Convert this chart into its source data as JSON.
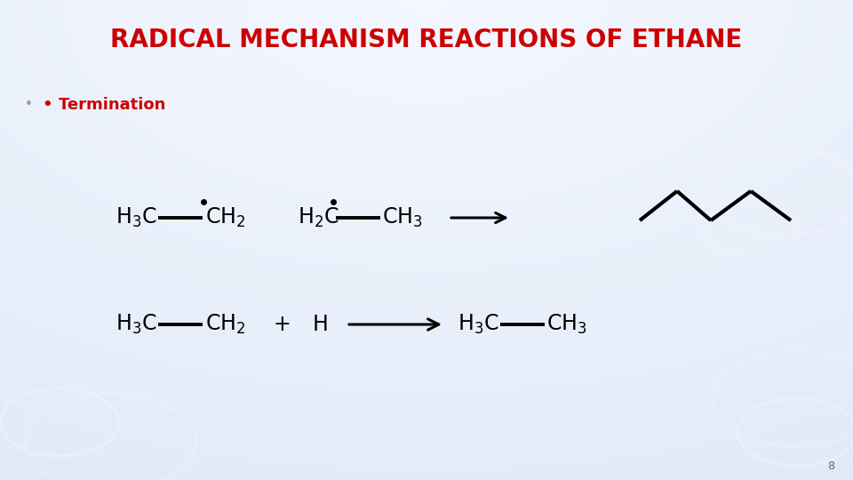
{
  "title": "RADICAL MECHANISM REACTIONS OF ETHANE",
  "title_color": "#CC0000",
  "title_fontsize": 20,
  "subtitle_color": "#CC0000",
  "subtitle_fontsize": 13,
  "bg_colors": [
    "#dde8f5",
    "#e8eff8",
    "#c5d5e8"
  ],
  "page_number": "8",
  "r1y": 245,
  "r2y": 365,
  "chem_fontsize": 17,
  "bond_lw": 2.8,
  "zigzag": {
    "x": [
      720,
      762,
      800,
      845,
      890
    ],
    "y": [
      248,
      215,
      248,
      215,
      248
    ]
  },
  "circles": [
    [
      0.07,
      0.12,
      0.07,
      0.22
    ],
    [
      0.13,
      0.08,
      0.1,
      0.16
    ],
    [
      0.935,
      0.1,
      0.07,
      0.22
    ],
    [
      0.935,
      0.17,
      0.1,
      0.16
    ],
    [
      0.92,
      0.6,
      0.09,
      0.18
    ],
    [
      0.88,
      0.52,
      0.055,
      0.14
    ]
  ]
}
